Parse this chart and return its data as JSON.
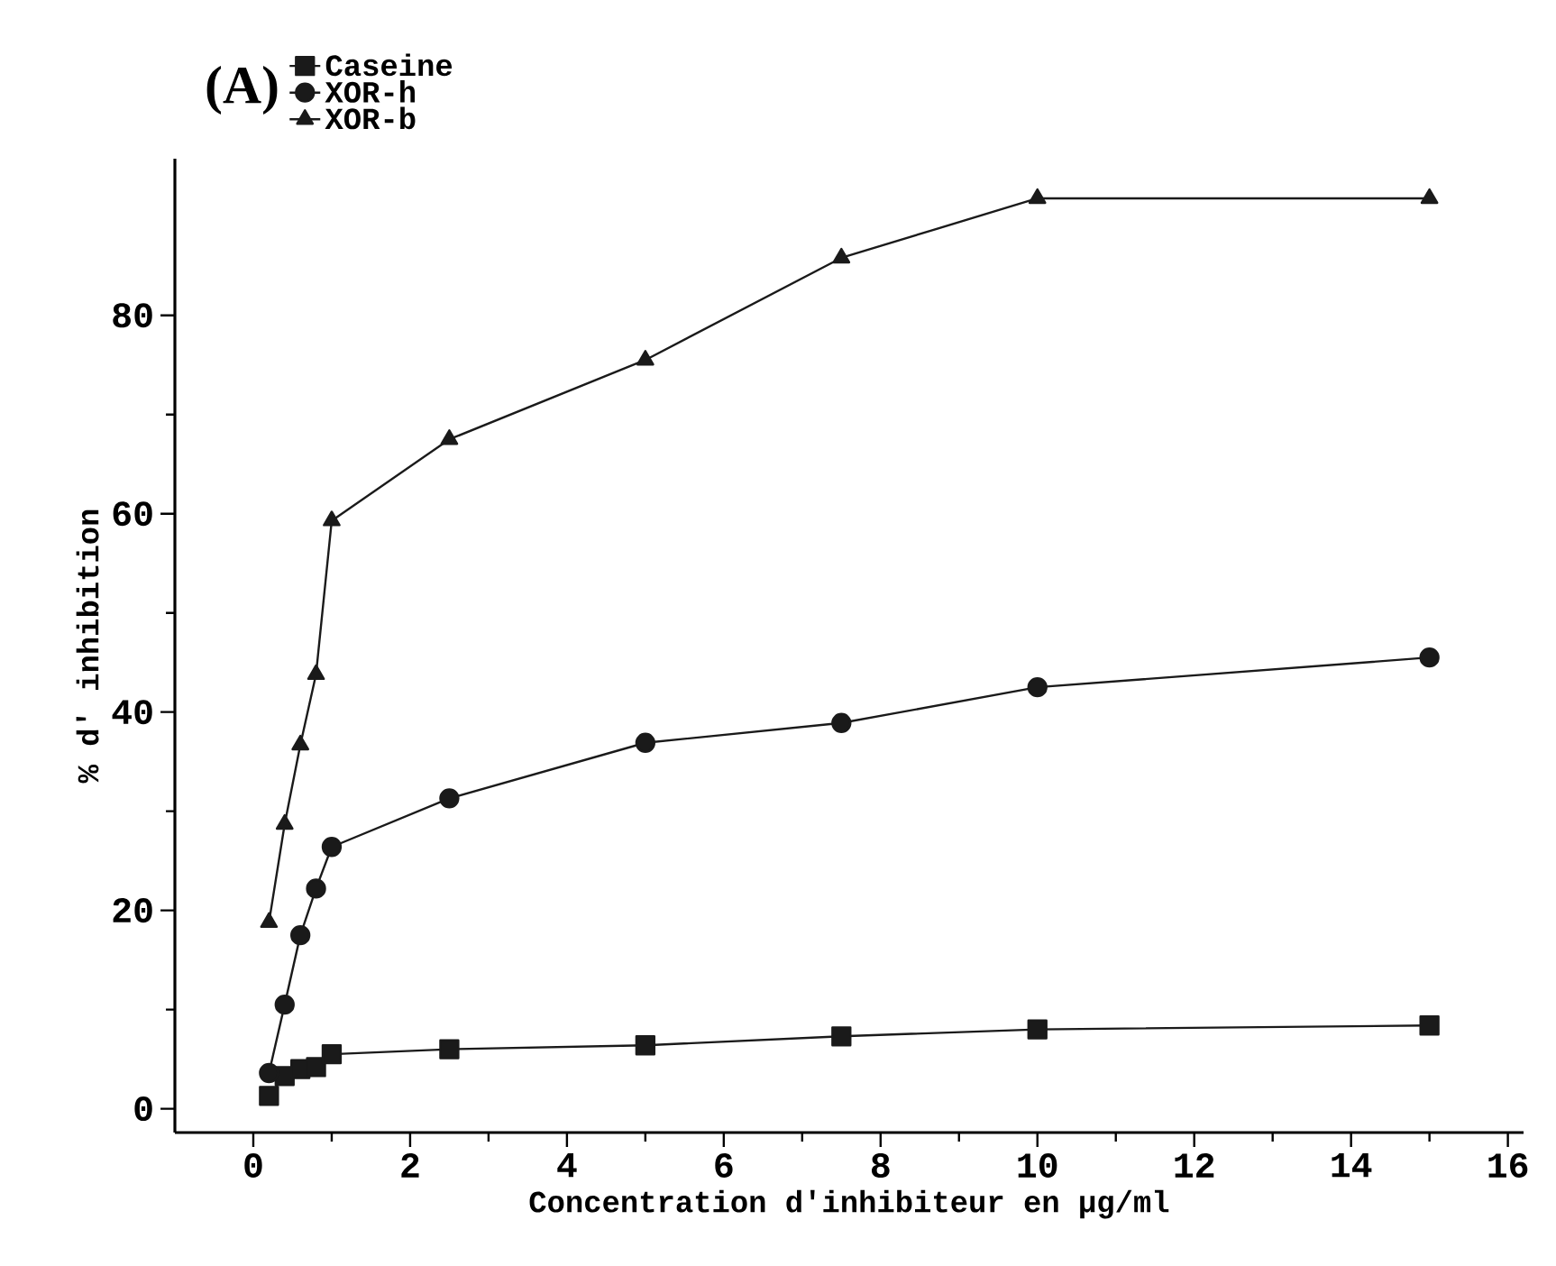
{
  "chart_data": {
    "type": "line",
    "title": "(A)",
    "xlabel": "Concentration d'inhibiteur en μg/ml",
    "ylabel": "% d' inhibition",
    "x": [
      0.2,
      0.4,
      0.6,
      0.8,
      1,
      2.5,
      5,
      7.5,
      10,
      15
    ],
    "series": [
      {
        "name": "Caseine",
        "color": "#1a1a1a",
        "marker": "square",
        "values": [
          1.3,
          3.3,
          4,
          4.2,
          5.5,
          6,
          6.4,
          7.3,
          8,
          8.4
        ]
      },
      {
        "name": "XOR-h",
        "color": "#1a1a1a",
        "marker": "circle",
        "values": [
          3.6,
          10.5,
          17.5,
          22.2,
          26.4,
          31.3,
          36.9,
          38.9,
          42.5,
          45.5
        ]
      },
      {
        "name": "XOR-b",
        "color": "#1a1a1a",
        "marker": "triangle",
        "values": [
          18.8,
          28.7,
          36.7,
          43.8,
          59.3,
          67.5,
          75.5,
          85.8,
          91.8,
          91.8
        ]
      }
    ],
    "xlim": [
      -1,
      16.2
    ],
    "ylim": [
      -2.4,
      95.8
    ],
    "xticks": [
      0,
      2,
      4,
      6,
      8,
      10,
      12,
      14,
      16
    ],
    "yticks": [
      0,
      20,
      40,
      60,
      80
    ],
    "grid": false,
    "legend": "top left",
    "line_style": "solid"
  }
}
